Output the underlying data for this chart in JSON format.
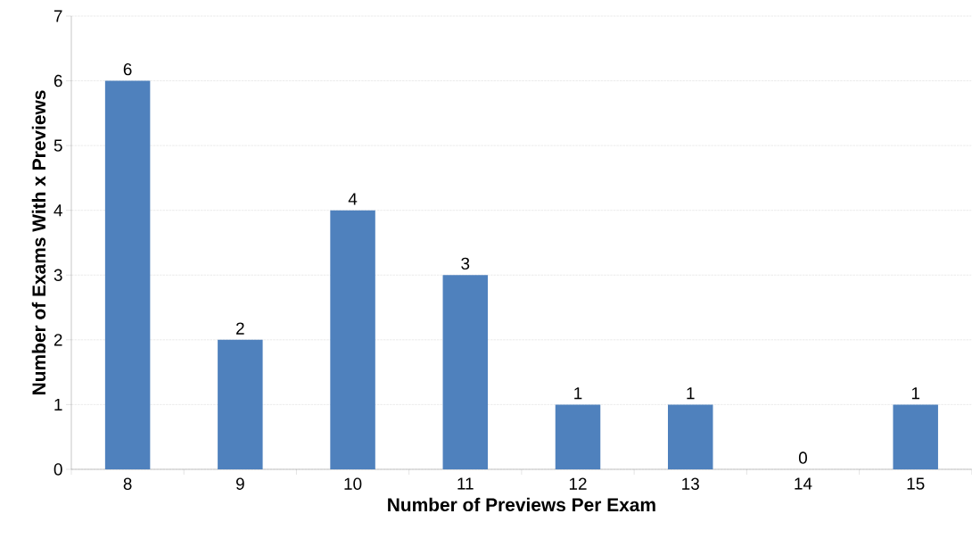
{
  "chart_data": {
    "type": "bar",
    "xlabel": "Number of Previews Per Exam",
    "ylabel": "Number of Exams With x Previews",
    "categories": [
      "8",
      "9",
      "10",
      "11",
      "12",
      "13",
      "14",
      "15"
    ],
    "values": [
      6,
      2,
      4,
      3,
      1,
      1,
      0,
      1
    ],
    "color": "#4f81bd",
    "data_labels": true,
    "grid": "y",
    "ylim": [
      0,
      7
    ],
    "yticks": [
      0,
      1,
      2,
      3,
      4,
      5,
      6,
      7
    ]
  }
}
